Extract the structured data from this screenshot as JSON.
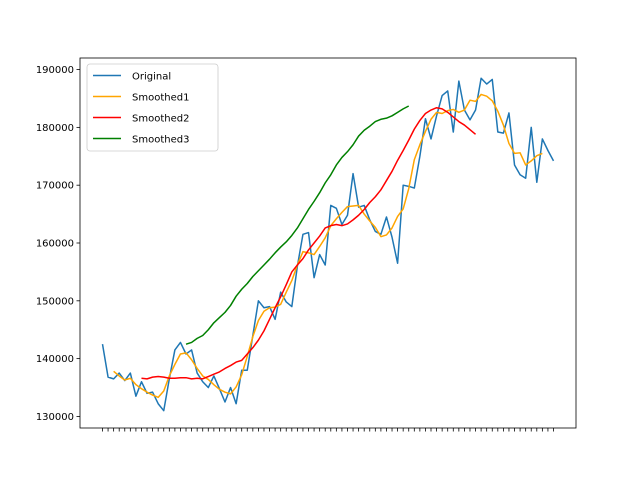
{
  "chart_data": {
    "type": "line",
    "ylim": [
      128000,
      192000
    ],
    "yticks": [
      130000,
      140000,
      150000,
      160000,
      170000,
      180000,
      190000
    ],
    "ytick_labels": [
      "130000",
      "140000",
      "150000",
      "160000",
      "170000",
      "180000",
      "190000"
    ],
    "legend_position": "top-left",
    "grid": false,
    "series": [
      {
        "name": "Original",
        "color": "#1f77b4",
        "start": 0,
        "values": [
          142500,
          136800,
          136500,
          137500,
          136200,
          137500,
          133500,
          136000,
          134000,
          134200,
          132200,
          131000,
          136500,
          141500,
          142800,
          140800,
          141500,
          137500,
          136000,
          135000,
          137000,
          134800,
          132500,
          135000,
          132200,
          138000,
          138000,
          144000,
          150000,
          148800,
          149000,
          146800,
          151500,
          149800,
          149000,
          156000,
          161500,
          161800,
          154000,
          158000,
          156200,
          166500,
          166000,
          163200,
          164800,
          172000,
          166200,
          166500,
          164000,
          162000,
          161500,
          164500,
          161000,
          156500,
          170000,
          169800,
          169500,
          175000,
          181500,
          178000,
          182000,
          185500,
          186300,
          179200,
          188000,
          183000,
          181300,
          183000,
          188500,
          187500,
          188300,
          179200,
          179000,
          182500,
          173500,
          171800,
          171200,
          180000,
          170500,
          178000,
          176000,
          174200
        ]
      },
      {
        "name": "Smoothed1",
        "color": "#ffa500",
        "start": 2,
        "values": [
          137800,
          137000,
          136300,
          136600,
          135500,
          134800,
          134200,
          133700,
          133300,
          134400,
          137000,
          139000,
          140800,
          141000,
          139800,
          138300,
          137000,
          136400,
          135500,
          134700,
          134200,
          133900,
          135100,
          137200,
          140400,
          143800,
          146600,
          148200,
          148800,
          148900,
          149400,
          151500,
          153500,
          156200,
          158500,
          158300,
          158000,
          159400,
          160900,
          163000,
          164200,
          165300,
          166300,
          166400,
          166500,
          165000,
          163800,
          162700,
          161100,
          161400,
          162600,
          164600,
          165900,
          169400,
          174400,
          177000,
          179300,
          181400,
          182600,
          182400,
          182900,
          183100,
          182600,
          183000,
          184700,
          184500,
          185700,
          185400,
          184600,
          182800,
          180400,
          177200,
          175500,
          175600,
          173500,
          174200,
          175100,
          175500
        ]
      },
      {
        "name": "Smoothed2",
        "color": "#ff0000",
        "start": 7,
        "values": [
          136600,
          136500,
          136800,
          136900,
          136800,
          136600,
          136600,
          136700,
          136700,
          136500,
          136600,
          136500,
          136900,
          137300,
          137700,
          138300,
          138800,
          139400,
          139700,
          140800,
          141900,
          143200,
          144800,
          146800,
          148800,
          150700,
          152800,
          155000,
          156200,
          157300,
          158800,
          160000,
          161200,
          162600,
          163000,
          163200,
          163000,
          163300,
          164000,
          164800,
          165800,
          167000,
          168000,
          169200,
          170800,
          172400,
          174300,
          176000,
          177800,
          179700,
          181200,
          182400,
          183000,
          183400,
          183200,
          182600,
          181800,
          181000,
          180400,
          179600,
          178800
        ]
      },
      {
        "name": "Smoothed3",
        "color": "#008000",
        "start": 15,
        "values": [
          142500,
          142800,
          143500,
          144000,
          145000,
          146200,
          147100,
          148000,
          149200,
          150800,
          152000,
          153000,
          154200,
          155200,
          156200,
          157200,
          158300,
          159300,
          160200,
          161300,
          162600,
          164200,
          165800,
          167200,
          168700,
          170400,
          171800,
          173500,
          174800,
          175800,
          177000,
          178500,
          179500,
          180200,
          181000,
          181400,
          181600,
          182000,
          182600,
          183200,
          183700
        ]
      }
    ],
    "x_count": 82
  }
}
